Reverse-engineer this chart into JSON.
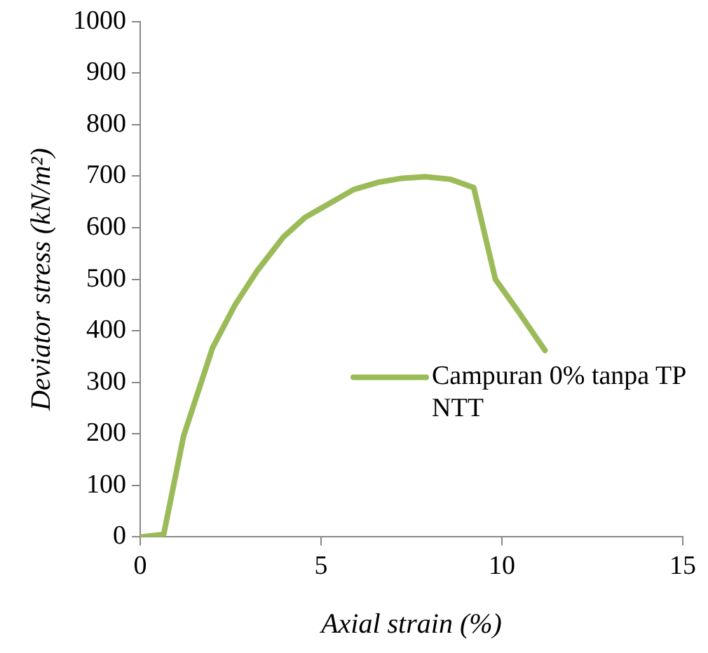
{
  "chart_data": {
    "type": "line",
    "xlabel": "Axial strain (%)",
    "ylabel": "Deviator stress (kN/m²)",
    "xlim": [
      0,
      15
    ],
    "xticks": [
      0,
      5,
      10,
      15
    ],
    "ylim": [
      0,
      1000
    ],
    "yticks": [
      0,
      100,
      200,
      300,
      400,
      500,
      600,
      700,
      800,
      900,
      1000
    ],
    "grid": false,
    "legend": "lower right",
    "marker": "none",
    "line_style": "solid",
    "series": [
      {
        "name": "Campuran 0% tanpa TP NTT",
        "color": "#9bbb59",
        "x": [
          0,
          0.65,
          1.2,
          2.0,
          2.62,
          3.22,
          3.96,
          4.56,
          5.23,
          5.9,
          6.57,
          7.24,
          7.88,
          8.58,
          9.22,
          9.82,
          10.45,
          11.19
        ],
        "values": [
          0,
          5,
          196,
          367,
          450,
          515,
          582,
          620,
          647,
          674,
          688,
          696,
          699,
          694,
          678,
          500,
          438,
          362
        ]
      }
    ]
  }
}
